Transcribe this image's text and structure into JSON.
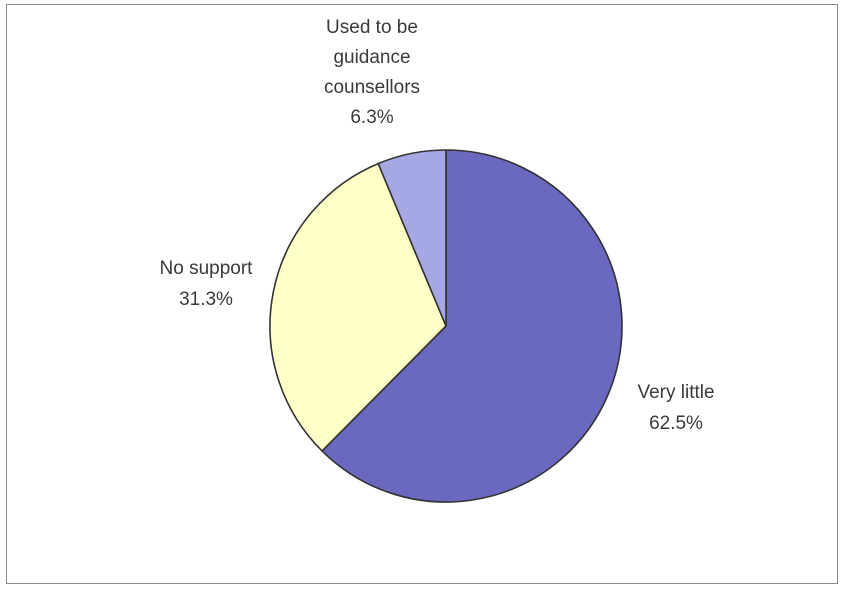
{
  "chart_data": {
    "type": "pie",
    "slices": [
      {
        "label": "Very little",
        "value": 62.5,
        "display": "62.5%",
        "color": "#6a68bf"
      },
      {
        "label": "No support",
        "value": 31.3,
        "display": "31.3%",
        "color": "#ffffc8"
      },
      {
        "label": "Used to be guidance counsellors",
        "value": 6.3,
        "display": "6.3%",
        "color": "#a6a8e4"
      }
    ],
    "label_lines": [
      [
        "Very little",
        "62.5%"
      ],
      [
        "No support",
        "31.3%"
      ],
      [
        "Used to be",
        "guidance",
        "counsellors",
        "6.3%"
      ]
    ],
    "start_angle_deg": 0,
    "direction": "clockwise",
    "legend": "none",
    "edge_color": "#333333"
  }
}
